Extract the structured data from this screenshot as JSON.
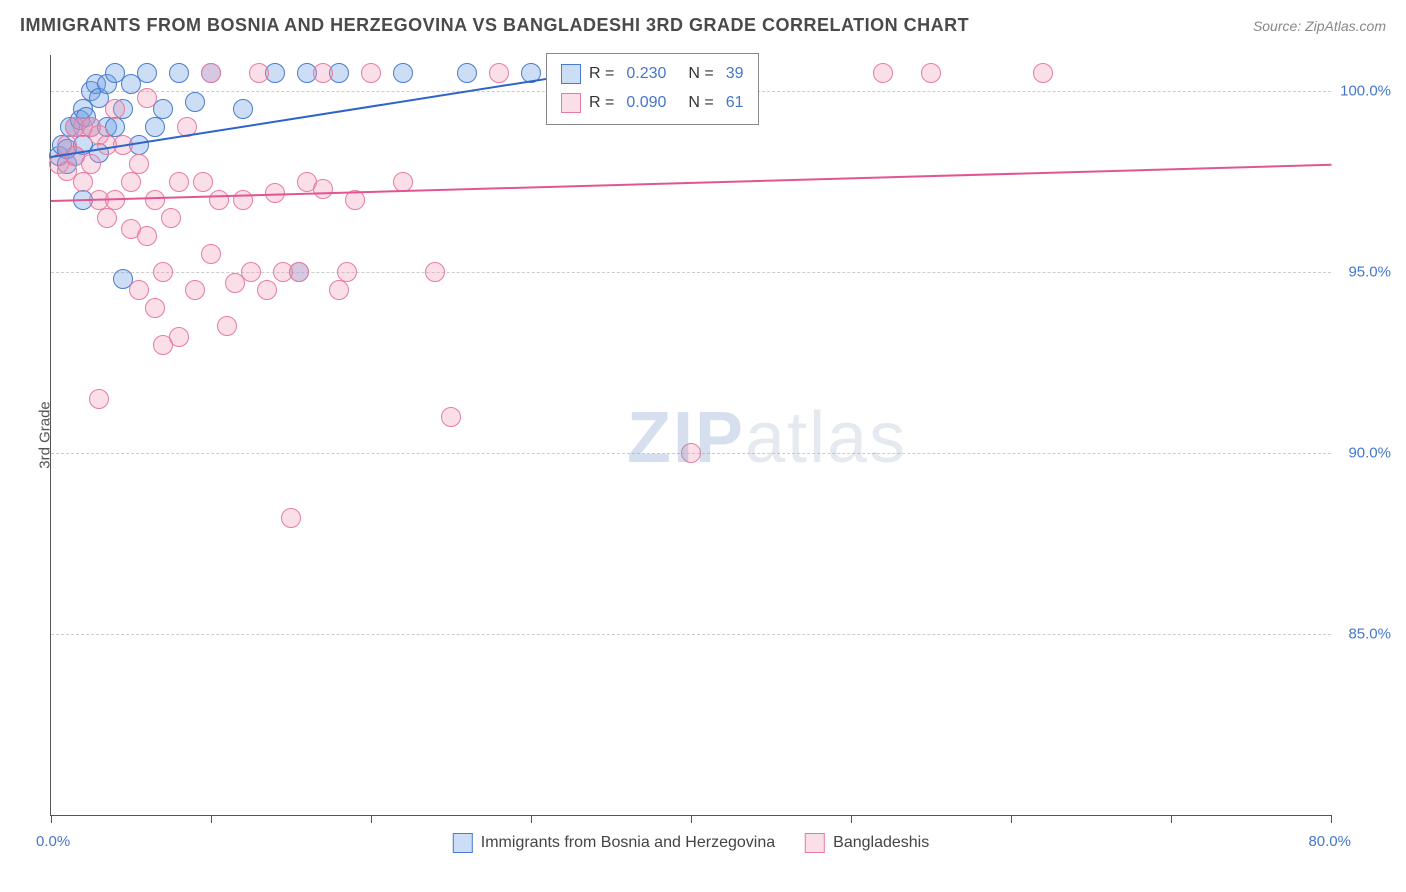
{
  "title": "IMMIGRANTS FROM BOSNIA AND HERZEGOVINA VS BANGLADESHI 3RD GRADE CORRELATION CHART",
  "source": "Source: ZipAtlas.com",
  "y_axis_title": "3rd Grade",
  "watermark_bold": "ZIP",
  "watermark_light": "atlas",
  "chart": {
    "type": "scatter",
    "xlim": [
      0,
      80
    ],
    "ylim": [
      80,
      101
    ],
    "x_ticks": [
      0,
      10,
      20,
      30,
      40,
      50,
      60,
      70,
      80
    ],
    "x_tick_labels_shown": {
      "0": "0.0%",
      "80": "80.0%"
    },
    "y_ticks": [
      85,
      90,
      95,
      100
    ],
    "y_tick_labels": [
      "85.0%",
      "90.0%",
      "95.0%",
      "100.0%"
    ],
    "grid_color": "#cccccc",
    "axis_color": "#555555",
    "background_color": "#ffffff",
    "marker_radius": 9,
    "marker_stroke_width": 1.5,
    "marker_fill_opacity": 0.35,
    "series": [
      {
        "name": "Immigrants from Bosnia and Herzegovina",
        "color_stroke": "#4a7bd0",
        "color_fill": "rgba(110,160,225,0.35)",
        "R": "0.230",
        "N": "39",
        "trend": {
          "x1": 0,
          "y1": 98.2,
          "x2": 33,
          "y2": 100.5,
          "color": "#2e63c9",
          "width": 2
        },
        "points": [
          [
            0.5,
            98.2
          ],
          [
            0.7,
            98.5
          ],
          [
            1.0,
            98.0
          ],
          [
            1.0,
            98.4
          ],
          [
            1.2,
            99.0
          ],
          [
            1.5,
            99.0
          ],
          [
            1.5,
            98.2
          ],
          [
            1.8,
            99.2
          ],
          [
            2.0,
            98.5
          ],
          [
            2.0,
            99.5
          ],
          [
            2.2,
            99.3
          ],
          [
            2.5,
            99.0
          ],
          [
            2.5,
            100.0
          ],
          [
            2.8,
            100.2
          ],
          [
            3.0,
            99.8
          ],
          [
            3.0,
            98.3
          ],
          [
            3.5,
            100.2
          ],
          [
            3.5,
            99.0
          ],
          [
            4.0,
            99.0
          ],
          [
            4.0,
            100.5
          ],
          [
            4.5,
            99.5
          ],
          [
            5.0,
            100.2
          ],
          [
            5.5,
            98.5
          ],
          [
            6.0,
            100.5
          ],
          [
            6.5,
            99.0
          ],
          [
            7.0,
            99.5
          ],
          [
            8.0,
            100.5
          ],
          [
            9.0,
            99.7
          ],
          [
            10.0,
            100.5
          ],
          [
            12.0,
            99.5
          ],
          [
            14.0,
            100.5
          ],
          [
            16.0,
            100.5
          ],
          [
            18.0,
            100.5
          ],
          [
            22.0,
            100.5
          ],
          [
            26.0,
            100.5
          ],
          [
            30.0,
            100.5
          ],
          [
            2.0,
            97.0
          ],
          [
            4.5,
            94.8
          ],
          [
            15.5,
            95.0
          ]
        ]
      },
      {
        "name": "Bangladeshis",
        "color_stroke": "#e87ca0",
        "color_fill": "rgba(240,150,180,0.30)",
        "R": "0.090",
        "N": "61",
        "trend": {
          "x1": 0,
          "y1": 97.0,
          "x2": 80,
          "y2": 98.0,
          "color": "#e25590",
          "width": 2
        },
        "points": [
          [
            0.5,
            98.0
          ],
          [
            1.0,
            98.5
          ],
          [
            1.0,
            97.8
          ],
          [
            1.5,
            98.2
          ],
          [
            1.5,
            99.0
          ],
          [
            2.0,
            99.0
          ],
          [
            2.0,
            97.5
          ],
          [
            2.5,
            98.0
          ],
          [
            2.5,
            99.0
          ],
          [
            3.0,
            98.8
          ],
          [
            3.0,
            97.0
          ],
          [
            3.5,
            98.5
          ],
          [
            3.5,
            96.5
          ],
          [
            4.0,
            97.0
          ],
          [
            4.0,
            99.5
          ],
          [
            4.5,
            98.5
          ],
          [
            5.0,
            97.5
          ],
          [
            5.0,
            96.2
          ],
          [
            5.5,
            98.0
          ],
          [
            6.0,
            96.0
          ],
          [
            6.0,
            99.8
          ],
          [
            6.5,
            97.0
          ],
          [
            7.0,
            95.0
          ],
          [
            7.0,
            93.0
          ],
          [
            7.5,
            96.5
          ],
          [
            8.0,
            93.2
          ],
          [
            8.0,
            97.5
          ],
          [
            8.5,
            99.0
          ],
          [
            9.0,
            94.5
          ],
          [
            9.5,
            97.5
          ],
          [
            10.0,
            95.5
          ],
          [
            10.0,
            100.5
          ],
          [
            10.5,
            97.0
          ],
          [
            11.0,
            93.5
          ],
          [
            11.5,
            94.7
          ],
          [
            12.0,
            97.0
          ],
          [
            12.5,
            95.0
          ],
          [
            13.0,
            100.5
          ],
          [
            13.5,
            94.5
          ],
          [
            14.0,
            97.2
          ],
          [
            14.5,
            95.0
          ],
          [
            15.0,
            88.2
          ],
          [
            15.5,
            95.0
          ],
          [
            16.0,
            97.5
          ],
          [
            17.0,
            97.3
          ],
          [
            17.0,
            100.5
          ],
          [
            18.0,
            94.5
          ],
          [
            18.5,
            95.0
          ],
          [
            19.0,
            97.0
          ],
          [
            20.0,
            100.5
          ],
          [
            22.0,
            97.5
          ],
          [
            24.0,
            95.0
          ],
          [
            25.0,
            91.0
          ],
          [
            28.0,
            100.5
          ],
          [
            40.0,
            90.0
          ],
          [
            52.0,
            100.5
          ],
          [
            55.0,
            100.5
          ],
          [
            62.0,
            100.5
          ],
          [
            3.0,
            91.5
          ],
          [
            5.5,
            94.5
          ],
          [
            6.5,
            94.0
          ]
        ]
      }
    ]
  },
  "bottom_legend": [
    {
      "swatch_fill": "rgba(110,160,225,0.35)",
      "swatch_stroke": "#4a7bd0",
      "label": "Immigrants from Bosnia and Herzegovina"
    },
    {
      "swatch_fill": "rgba(240,150,180,0.30)",
      "swatch_stroke": "#e87ca0",
      "label": "Bangladeshis"
    }
  ]
}
